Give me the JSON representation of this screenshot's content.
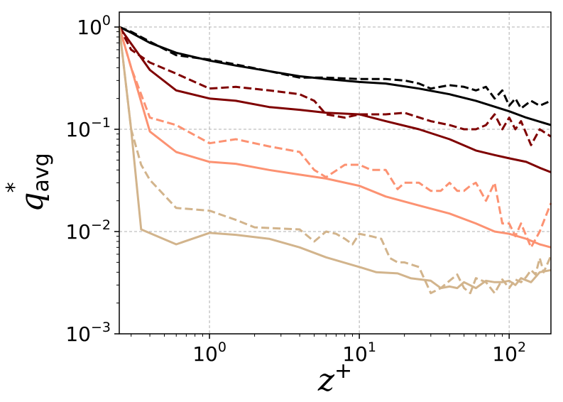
{
  "chart_data": {
    "type": "line",
    "xscale": "log",
    "yscale": "log",
    "xlim": [
      0.25,
      190
    ],
    "ylim": [
      0.001,
      1.4
    ],
    "grid": true,
    "xlabel": {
      "base": "z",
      "sup": "+"
    },
    "ylabel": {
      "base": "q",
      "sup": "*",
      "sub": "avg"
    },
    "x_ticks": [
      {
        "value": 1,
        "base": "10",
        "exp": "0"
      },
      {
        "value": 10,
        "base": "10",
        "exp": "1"
      },
      {
        "value": 100,
        "base": "10",
        "exp": "2"
      }
    ],
    "y_ticks": [
      {
        "value": 0.001,
        "base": "10",
        "exp": "−3"
      },
      {
        "value": 0.01,
        "base": "10",
        "exp": "−2"
      },
      {
        "value": 0.1,
        "base": "10",
        "exp": "−1"
      },
      {
        "value": 1,
        "base": "10",
        "exp": "0"
      }
    ],
    "series": [
      {
        "color": "#000000",
        "style": "solid",
        "x": [
          0.25,
          0.3,
          0.4,
          0.6,
          1.0,
          1.5,
          2.5,
          4,
          6,
          10,
          15,
          25,
          40,
          60,
          100,
          130,
          190
        ],
        "y": [
          1.0,
          0.88,
          0.7,
          0.56,
          0.47,
          0.42,
          0.37,
          0.33,
          0.31,
          0.29,
          0.28,
          0.25,
          0.22,
          0.19,
          0.15,
          0.13,
          0.11
        ]
      },
      {
        "color": "#000000",
        "style": "dashed",
        "x": [
          0.25,
          0.3,
          0.4,
          0.6,
          1.0,
          1.5,
          2.5,
          4,
          6,
          10,
          15,
          20,
          25,
          30,
          40,
          50,
          60,
          70,
          80,
          90,
          100,
          110,
          120,
          140,
          160,
          190
        ],
        "y": [
          1.0,
          0.9,
          0.72,
          0.53,
          0.48,
          0.43,
          0.37,
          0.32,
          0.32,
          0.31,
          0.31,
          0.3,
          0.28,
          0.25,
          0.27,
          0.26,
          0.24,
          0.26,
          0.2,
          0.24,
          0.17,
          0.2,
          0.16,
          0.19,
          0.17,
          0.19
        ]
      },
      {
        "color": "#7f0000",
        "style": "solid",
        "x": [
          0.25,
          0.4,
          0.6,
          1.0,
          1.5,
          2.5,
          4,
          6,
          10,
          15,
          25,
          40,
          60,
          80,
          100,
          130,
          160,
          190
        ],
        "y": [
          1.0,
          0.38,
          0.24,
          0.2,
          0.19,
          0.165,
          0.155,
          0.145,
          0.14,
          0.12,
          0.1,
          0.08,
          0.062,
          0.056,
          0.052,
          0.048,
          0.042,
          0.038
        ]
      },
      {
        "color": "#7f0000",
        "style": "dashed",
        "x": [
          0.25,
          0.3,
          0.4,
          0.6,
          1.0,
          1.5,
          2.5,
          4,
          5,
          6,
          8,
          10,
          15,
          20,
          30,
          40,
          50,
          60,
          70,
          80,
          90,
          100,
          110,
          120,
          140,
          160,
          190
        ],
        "y": [
          1.0,
          0.6,
          0.45,
          0.35,
          0.25,
          0.26,
          0.24,
          0.22,
          0.19,
          0.14,
          0.13,
          0.14,
          0.14,
          0.145,
          0.12,
          0.11,
          0.1,
          0.1,
          0.11,
          0.14,
          0.1,
          0.13,
          0.1,
          0.12,
          0.07,
          0.1,
          0.085
        ]
      },
      {
        "color": "#fc9272",
        "style": "solid",
        "x": [
          0.25,
          0.4,
          0.6,
          1.0,
          1.5,
          2.5,
          4,
          6,
          10,
          15,
          25,
          40,
          60,
          80,
          100,
          130,
          160,
          190
        ],
        "y": [
          1.0,
          0.095,
          0.06,
          0.048,
          0.046,
          0.04,
          0.036,
          0.033,
          0.028,
          0.022,
          0.018,
          0.015,
          0.012,
          0.01,
          0.0095,
          0.0085,
          0.0075,
          0.007
        ]
      },
      {
        "color": "#fc9272",
        "style": "dashed",
        "x": [
          0.25,
          0.3,
          0.4,
          0.6,
          1.0,
          1.5,
          2.5,
          4,
          5,
          6,
          8,
          10,
          12,
          15,
          18,
          20,
          25,
          30,
          35,
          40,
          45,
          50,
          55,
          60,
          70,
          80,
          90,
          100,
          110,
          120,
          140,
          160,
          190
        ],
        "y": [
          1.0,
          0.4,
          0.13,
          0.11,
          0.073,
          0.08,
          0.068,
          0.06,
          0.04,
          0.034,
          0.045,
          0.045,
          0.04,
          0.04,
          0.026,
          0.03,
          0.03,
          0.025,
          0.025,
          0.03,
          0.025,
          0.025,
          0.028,
          0.03,
          0.02,
          0.03,
          0.012,
          0.012,
          0.009,
          0.012,
          0.007,
          0.01,
          0.019
        ]
      },
      {
        "color": "#d2b48c",
        "style": "solid",
        "x": [
          0.25,
          0.3,
          0.35,
          0.6,
          1.0,
          1.5,
          2.5,
          4,
          6,
          10,
          13,
          18,
          22,
          30,
          35,
          40,
          45,
          50,
          60,
          70,
          80,
          90,
          100,
          110,
          120,
          140,
          160,
          190
        ],
        "y": [
          1.0,
          0.1,
          0.0105,
          0.0075,
          0.0097,
          0.0093,
          0.0085,
          0.007,
          0.0056,
          0.0045,
          0.004,
          0.0039,
          0.0035,
          0.0033,
          0.0028,
          0.0029,
          0.0028,
          0.0032,
          0.0028,
          0.0033,
          0.0032,
          0.0032,
          0.0033,
          0.003,
          0.0035,
          0.0032,
          0.004,
          0.0042
        ]
      },
      {
        "color": "#d2b48c",
        "style": "dashed",
        "x": [
          0.25,
          0.3,
          0.35,
          0.4,
          0.6,
          1.0,
          1.5,
          2.0,
          3,
          4,
          5,
          6,
          7,
          8,
          9,
          10,
          12,
          14,
          16,
          18,
          20,
          25,
          30,
          35,
          40,
          45,
          50,
          55,
          60,
          70,
          80,
          90,
          100,
          110,
          120,
          130,
          140,
          150,
          160,
          170,
          190
        ],
        "y": [
          1.0,
          0.1,
          0.045,
          0.032,
          0.017,
          0.016,
          0.013,
          0.011,
          0.0107,
          0.0105,
          0.008,
          0.01,
          0.0095,
          0.0085,
          0.0075,
          0.0095,
          0.009,
          0.0085,
          0.0055,
          0.005,
          0.005,
          0.0045,
          0.0025,
          0.0028,
          0.0033,
          0.0038,
          0.0028,
          0.0025,
          0.0035,
          0.0032,
          0.0025,
          0.0034,
          0.0028,
          0.0034,
          0.0032,
          0.0036,
          0.0042,
          0.0038,
          0.0055,
          0.004,
          0.0058
        ]
      }
    ]
  }
}
